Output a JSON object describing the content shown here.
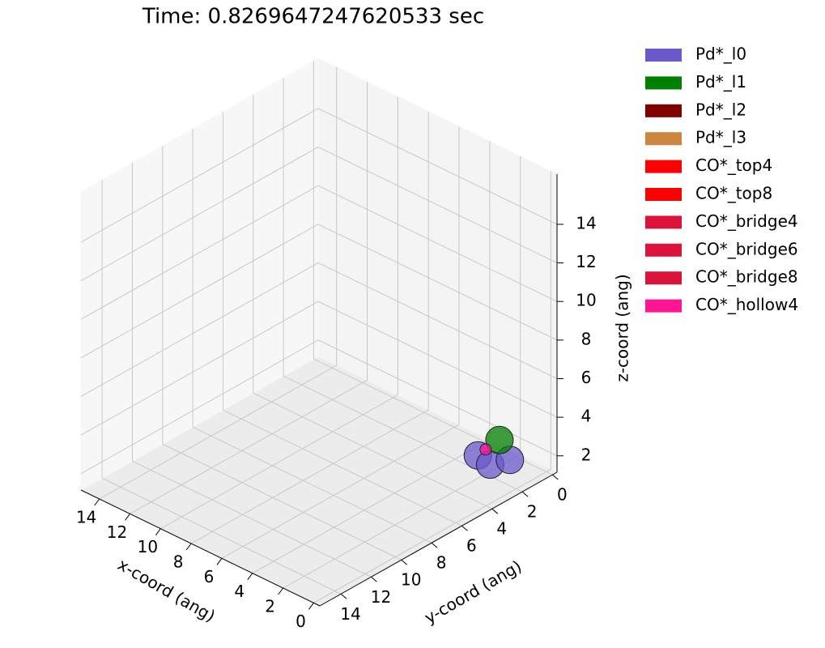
{
  "chart_data": {
    "type": "scatter3d",
    "title": "Time: 0.8269647247620533 sec",
    "xlabel": "x-coord (ang)",
    "ylabel": "y-coord (ang)",
    "zlabel": "z-coord (ang)",
    "xlim": [
      -0.4,
      15.2
    ],
    "ylim": [
      -0.3,
      15.4
    ],
    "zlim": [
      1.15,
      16.6
    ],
    "xticks": [
      0,
      2,
      4,
      6,
      8,
      10,
      12,
      14
    ],
    "yticks": [
      0,
      2,
      4,
      6,
      8,
      10,
      12,
      14
    ],
    "zticks": [
      2,
      4,
      6,
      8,
      10,
      12,
      14
    ],
    "grid": true,
    "legend": "outside upper right",
    "series": [
      {
        "name": "Pd*_l0",
        "color": "#6a5acd",
        "x": [
          2.4,
          1.4,
          1.0
        ],
        "y": [
          2.1,
          2.3,
          1.4
        ],
        "z": [
          2,
          2,
          2
        ]
      },
      {
        "name": "Pd*_l1",
        "color": "#008000",
        "x": [
          0.2
        ],
        "y": [
          2.9
        ],
        "z": [
          4
        ]
      },
      {
        "name": "Pd*_l2",
        "color": "#800000",
        "x": [],
        "y": [],
        "z": []
      },
      {
        "name": "Pd*_l3",
        "color": "#cd853f",
        "x": [],
        "y": [],
        "z": []
      },
      {
        "name": "CO*_top4",
        "color": "#ff0000",
        "x": [],
        "y": [],
        "z": []
      },
      {
        "name": "CO*_top8",
        "color": "#ff0000",
        "x": [],
        "y": [],
        "z": []
      },
      {
        "name": "CO*_bridge4",
        "color": "#dc143c",
        "x": [],
        "y": [],
        "z": []
      },
      {
        "name": "CO*_bridge6",
        "color": "#dc143c",
        "x": [],
        "y": [],
        "z": []
      },
      {
        "name": "CO*_bridge8",
        "color": "#dc143c",
        "x": [],
        "y": [],
        "z": []
      },
      {
        "name": "CO*_hollow4",
        "color": "#ff1493",
        "x": [
          1.3
        ],
        "y": [
          2.7
        ],
        "z": [
          3
        ]
      }
    ]
  }
}
